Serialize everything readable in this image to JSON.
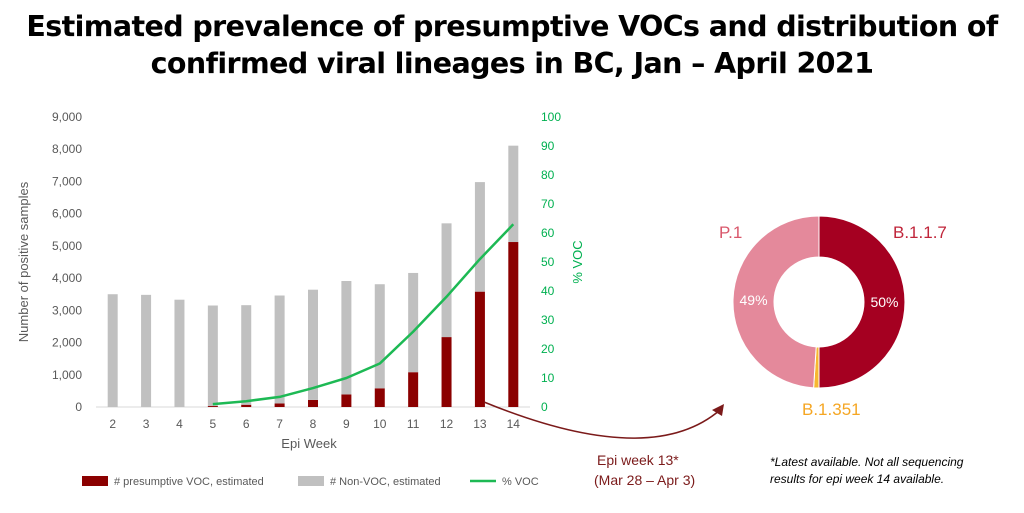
{
  "title": {
    "line1": "Estimated prevalence of presumptive VOCs and distribution of",
    "line2": "confirmed viral lineages in BC, Jan – April 2021"
  },
  "chart_data": [
    {
      "type": "bar",
      "stacked": true,
      "categories": [
        "2",
        "3",
        "4",
        "5",
        "6",
        "7",
        "8",
        "9",
        "10",
        "11",
        "12",
        "13",
        "14"
      ],
      "series": [
        {
          "name": "# presumptive VOC, estimated",
          "color": "#8B0000",
          "values": [
            0,
            0,
            0,
            30,
            70,
            110,
            220,
            390,
            580,
            1080,
            2170,
            3580,
            5120
          ]
        },
        {
          "name": "# Non-VOC, estimated",
          "color": "#C0C0C0",
          "values": [
            3500,
            3480,
            3330,
            3120,
            3090,
            3350,
            3420,
            3520,
            3230,
            3080,
            3530,
            3400,
            2990
          ]
        },
        {
          "name": "% VOC",
          "color": "#1DB954",
          "axis": "secondary",
          "type": "line",
          "values": [
            null,
            null,
            null,
            1,
            2,
            3.5,
            6.5,
            10,
            15,
            26,
            38,
            51,
            63
          ]
        }
      ],
      "xlabel": "Epi Week",
      "ylabel": "Number of positive samples",
      "y2label": "% VOC",
      "ylim": [
        0,
        9000
      ],
      "yticks": [
        "0",
        "1,000",
        "2,000",
        "3,000",
        "4,000",
        "5,000",
        "6,000",
        "7,000",
        "8,000",
        "9,000"
      ],
      "y2lim": [
        0,
        100
      ],
      "y2ticks": [
        "0",
        "10",
        "20",
        "30",
        "40",
        "50",
        "60",
        "70",
        "80",
        "90",
        "100"
      ],
      "grid": false,
      "legend": "bottom"
    },
    {
      "type": "pie",
      "variant": "donut",
      "labels": [
        "B.1.1.7",
        "B.1.351",
        "P.1"
      ],
      "values": [
        50,
        1,
        49
      ],
      "display_labels": [
        "50%",
        "",
        "49%"
      ],
      "colors": [
        "#A50021",
        "#F7B731",
        "#E4899B"
      ],
      "label_colors": [
        "#C0253A",
        "#F5A623",
        "#D9576B"
      ]
    }
  ],
  "annotation": {
    "line1": "Epi week 13*",
    "line2": "(Mar 28 – Apr 3)"
  },
  "footnote": {
    "line1": "*Latest available. Not all sequencing",
    "line2": "results for epi week 14 available."
  }
}
